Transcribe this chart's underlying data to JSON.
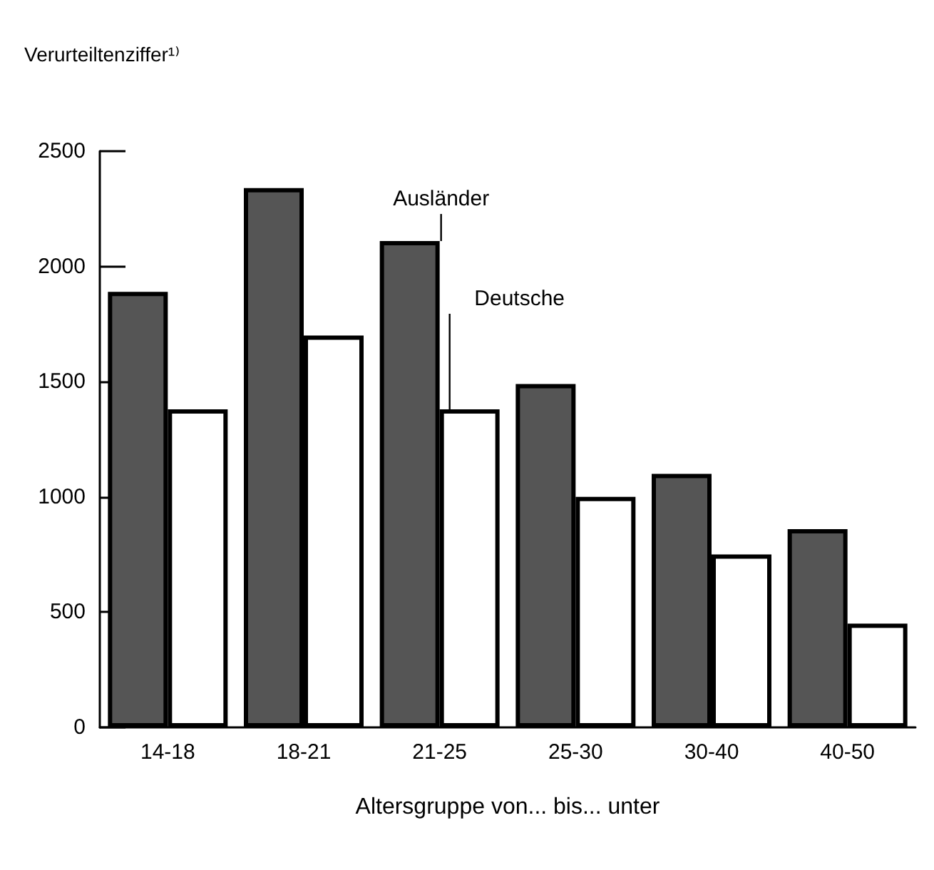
{
  "chart_data": {
    "type": "bar",
    "ylabel": "Verurteiltenziffer¹⁾",
    "xlabel": "Altersgruppe von... bis... unter",
    "categories": [
      "14-18",
      "18-21",
      "21-25",
      "25-30",
      "30-40",
      "40-50"
    ],
    "series": [
      {
        "name": "Ausländer",
        "color": "#555555",
        "values": [
          1890,
          2340,
          2110,
          1490,
          1100,
          860
        ]
      },
      {
        "name": "Deutsche",
        "color": "#ffffff",
        "values": [
          1380,
          1700,
          1380,
          1000,
          750,
          450
        ]
      }
    ],
    "ylim": [
      0,
      2500
    ],
    "yticks": [
      0,
      500,
      1000,
      1500,
      2000,
      2500
    ],
    "grid": false,
    "legend": false
  }
}
